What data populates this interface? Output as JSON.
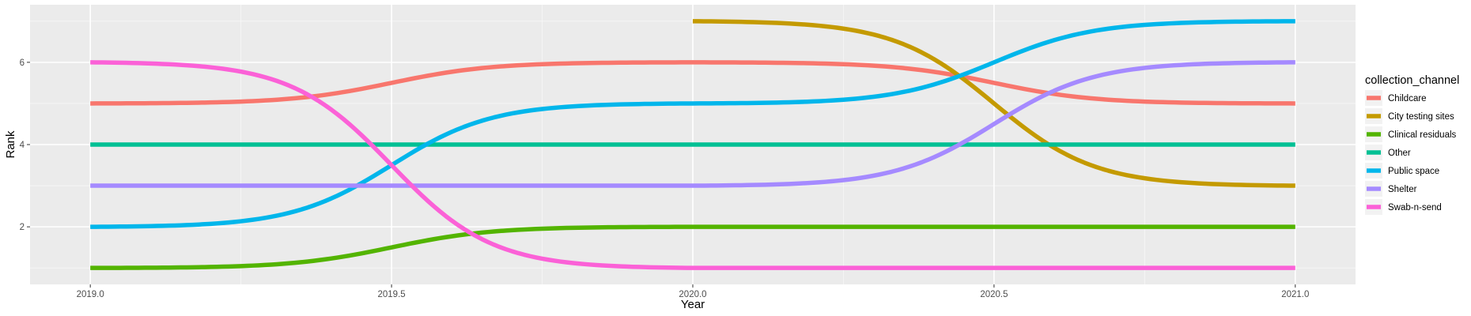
{
  "chart_data": {
    "type": "line",
    "title": "",
    "xlabel": "Year",
    "ylabel": "Rank",
    "xlim": [
      2018.9,
      2021.1
    ],
    "ylim": [
      0.6,
      7.4
    ],
    "x_ticks": [
      2019.0,
      2019.5,
      2020.0,
      2020.5,
      2021.0
    ],
    "x_tick_labels": [
      "2019.0",
      "2019.5",
      "2020.0",
      "2020.5",
      "2021.0"
    ],
    "y_ticks": [
      2,
      4,
      6
    ],
    "y_tick_labels": [
      "2",
      "4",
      "6"
    ],
    "grid": true,
    "curve": "sigmoid bump",
    "legend": {
      "title": "collection_channel",
      "placement": "right"
    },
    "series": [
      {
        "name": "Childcare",
        "color": "#F8766D",
        "x": [
          2019,
          2020,
          2021
        ],
        "y": [
          5,
          6,
          5
        ]
      },
      {
        "name": "City testing sites",
        "color": "#C49A00",
        "x": [
          2020,
          2021
        ],
        "y": [
          7,
          3
        ]
      },
      {
        "name": "Clinical residuals",
        "color": "#53B400",
        "x": [
          2019,
          2020,
          2021
        ],
        "y": [
          1,
          2,
          2
        ]
      },
      {
        "name": "Other",
        "color": "#00C094",
        "x": [
          2019,
          2020,
          2021
        ],
        "y": [
          4,
          4,
          4
        ]
      },
      {
        "name": "Public space",
        "color": "#00B6EB",
        "x": [
          2019,
          2020,
          2021
        ],
        "y": [
          2,
          5,
          7
        ]
      },
      {
        "name": "Shelter",
        "color": "#A58AFF",
        "x": [
          2019,
          2020,
          2021
        ],
        "y": [
          3,
          3,
          6
        ]
      },
      {
        "name": "Swab-n-send",
        "color": "#FB61D7",
        "x": [
          2019,
          2020,
          2021
        ],
        "y": [
          6,
          1,
          1
        ]
      }
    ]
  }
}
